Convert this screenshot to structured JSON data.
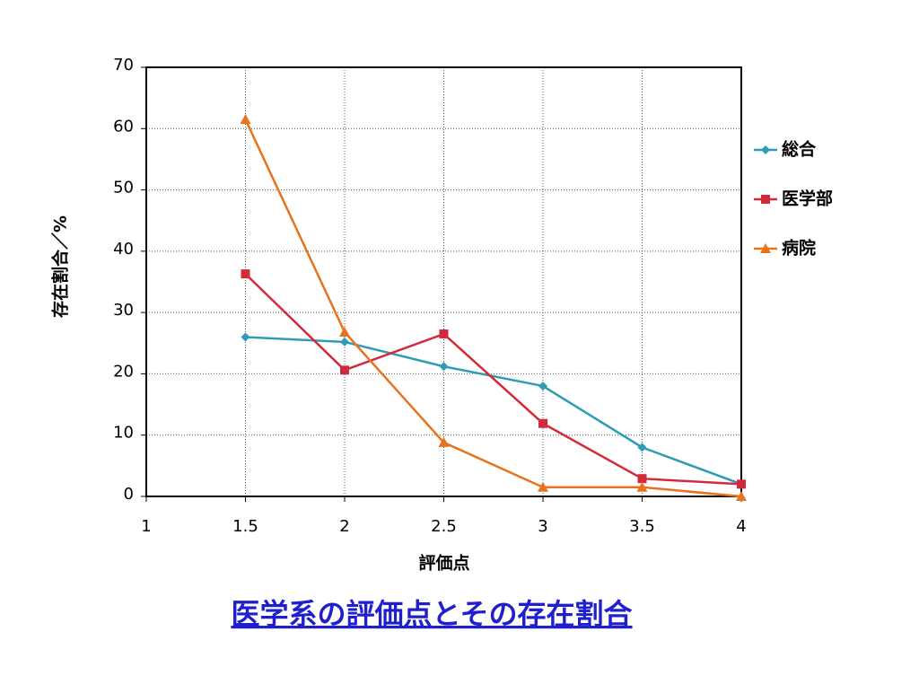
{
  "chart_data": {
    "type": "line",
    "title": "医学系の評価点とその存在割合",
    "x_label": "評価点",
    "y_label": "存在割合／%",
    "x": [
      1.5,
      2,
      2.5,
      3,
      3.5,
      4
    ],
    "series": [
      {
        "name": "総合",
        "color": "#2f9cb6",
        "marker": "diamond",
        "values": [
          26,
          25.2,
          21.2,
          18,
          8,
          2
        ]
      },
      {
        "name": "医学部",
        "color": "#d22a3a",
        "marker": "square",
        "values": [
          36.3,
          20.6,
          26.5,
          11.9,
          2.9,
          2
        ]
      },
      {
        "name": "病院",
        "color": "#e8731e",
        "marker": "triangle",
        "values": [
          61.5,
          26.8,
          8.8,
          1.5,
          1.5,
          0
        ]
      }
    ],
    "xlim": [
      1,
      4
    ],
    "xticks": [
      1,
      1.5,
      2,
      2.5,
      3,
      3.5,
      4
    ],
    "ylim": [
      0,
      70
    ],
    "yticks": [
      0,
      10,
      20,
      30,
      40,
      50,
      60,
      70
    ],
    "grid": true,
    "legend": "right"
  }
}
